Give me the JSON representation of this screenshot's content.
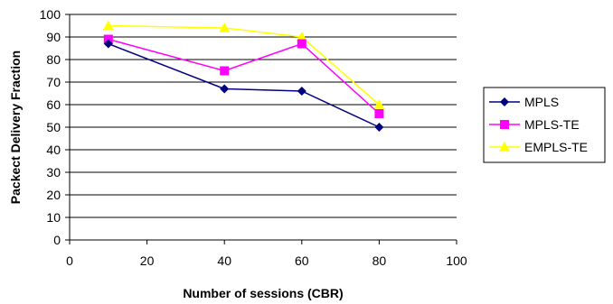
{
  "chart_data": {
    "type": "line",
    "title": "",
    "xlabel": "Number of sessions (CBR)",
    "ylabel": "Packect Delivery Fraction",
    "xlim": [
      0,
      100
    ],
    "ylim": [
      0,
      100
    ],
    "xticks": [
      0,
      20,
      40,
      60,
      80,
      100
    ],
    "yticks": [
      0,
      10,
      20,
      30,
      40,
      50,
      60,
      70,
      80,
      90,
      100
    ],
    "grid": "horizontal",
    "legend_position": "right",
    "series": [
      {
        "name": "MPLS",
        "color": "#000080",
        "marker": "diamond",
        "x": [
          10,
          40,
          60,
          80
        ],
        "y": [
          87,
          67,
          66,
          50
        ]
      },
      {
        "name": "MPLS-TE",
        "color": "#ff00ff",
        "marker": "square",
        "x": [
          10,
          40,
          60,
          80
        ],
        "y": [
          89,
          75,
          87,
          56
        ]
      },
      {
        "name": "EMPLS-TE",
        "color": "#ffff00",
        "marker": "triangle",
        "x": [
          10,
          40,
          60,
          80
        ],
        "y": [
          95,
          94,
          90,
          60
        ]
      }
    ]
  }
}
